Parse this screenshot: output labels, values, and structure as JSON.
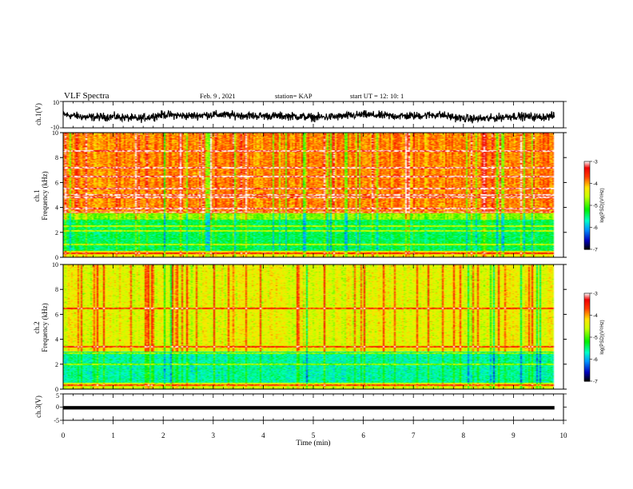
{
  "header": {
    "title": "VLF Spectra",
    "date": "Feb. 9 , 2021",
    "station": "station= KAP",
    "start_ut": "start  UT =   12: 10: 1"
  },
  "chart_data": [
    {
      "type": "line",
      "panel": "ch1-waveform",
      "ylabel": "ch.1(V)",
      "ylim": [
        -10,
        10
      ],
      "yticks": [
        "10",
        "-10"
      ],
      "xlim": [
        0,
        10
      ],
      "data_end_min": 9.82,
      "trace_color": "#000000",
      "envelope_x_min": [
        0,
        0.5,
        1,
        1.5,
        2,
        2.5,
        3,
        3.5,
        4,
        4.5,
        5,
        5.5,
        6,
        6.5,
        7,
        7.5,
        8,
        8.5,
        9,
        9.5,
        9.82
      ],
      "envelope_center_v": [
        0,
        -2,
        -1.5,
        -3,
        0,
        -1,
        0,
        -0.5,
        -1,
        -1,
        -2,
        -1.5,
        0,
        -1,
        -1,
        0,
        -3,
        -3,
        -1,
        -2,
        -1
      ]
    },
    {
      "type": "heatmap",
      "panel": "ch1-spectrogram",
      "ylabel_top": "ch.1",
      "ylabel": "Frequency  (kHz)",
      "ylim": [
        0,
        10
      ],
      "yticks": [
        "0",
        "2",
        "4",
        "6",
        "8",
        "10"
      ],
      "xlim": [
        0,
        10
      ],
      "colorbar": {
        "label": "log(PSD)(V²/Hz)",
        "range": [
          -7,
          -3
        ],
        "ticks": [
          "-3",
          "-4",
          "-5",
          "-6",
          "-7"
        ]
      },
      "typical_log_psd_by_band": [
        {
          "from_khz": 0,
          "to_khz": 0.5,
          "value": -4.3
        },
        {
          "from_khz": 0.5,
          "to_khz": 3.0,
          "value": -5.4
        },
        {
          "from_khz": 3.0,
          "to_khz": 3.6,
          "value": -4.8
        },
        {
          "from_khz": 3.6,
          "to_khz": 10,
          "value": -3.9
        }
      ],
      "horizontal_lines_khz": [
        0.3,
        1.0,
        2.1,
        2.5,
        3.6,
        3.9,
        4.8,
        5.0,
        5.5,
        6.5,
        7.2,
        8.5
      ]
    },
    {
      "type": "heatmap",
      "panel": "ch2-spectrogram",
      "ylabel_top": "ch.2",
      "ylabel": "Frequency  (kHz)",
      "ylim": [
        0,
        10
      ],
      "yticks": [
        "0",
        "2",
        "4",
        "6",
        "8",
        "10"
      ],
      "xlim": [
        0,
        10
      ],
      "colorbar": {
        "label": "log(PSD)(V²/Hz)",
        "range": [
          -7,
          -3
        ],
        "ticks": [
          "-3",
          "-4",
          "-5",
          "-6",
          "-7"
        ]
      },
      "typical_log_psd_by_band": [
        {
          "from_khz": 0,
          "to_khz": 0.5,
          "value": -4.5
        },
        {
          "from_khz": 0.5,
          "to_khz": 3.0,
          "value": -5.6
        },
        {
          "from_khz": 3.0,
          "to_khz": 10,
          "value": -4.4
        }
      ],
      "horizontal_lines_khz": [
        0.3,
        2.0,
        2.9,
        3.4,
        6.5
      ]
    },
    {
      "type": "line",
      "panel": "ch3-waveform",
      "ylabel": "ch.3(V)",
      "ylim": [
        -5,
        5
      ],
      "yticks": [
        "5",
        "0",
        "-5"
      ],
      "xlim": [
        0,
        10
      ],
      "data_end_min": 9.82,
      "band_low_v": -0.9,
      "band_high_v": 0.4,
      "trace_color": "#000000"
    }
  ],
  "xaxis": {
    "label": "Time  (min)",
    "ticks": [
      "0",
      "1",
      "2",
      "3",
      "4",
      "5",
      "6",
      "7",
      "8",
      "9",
      "10"
    ]
  }
}
